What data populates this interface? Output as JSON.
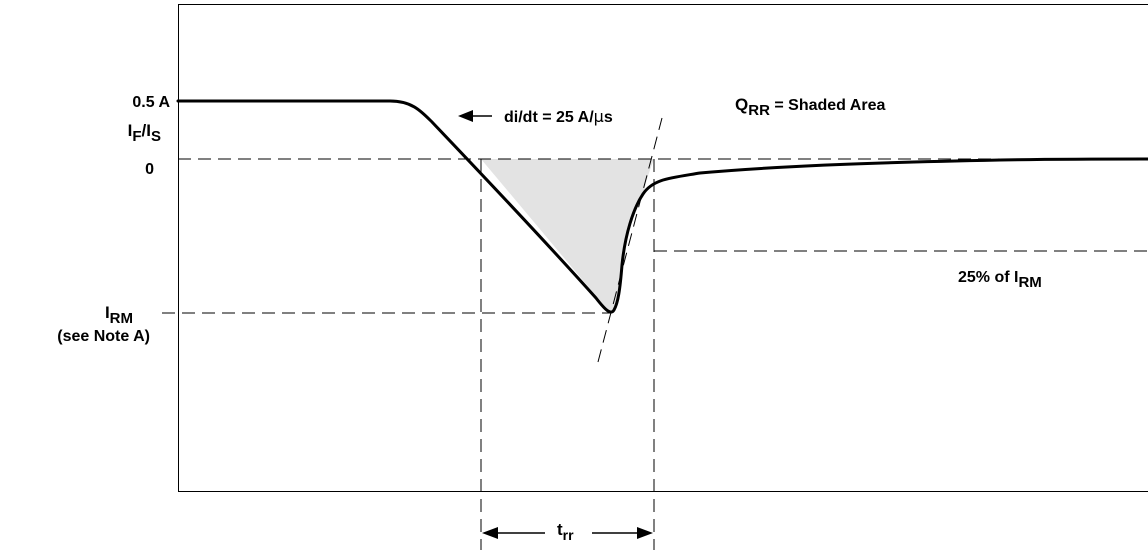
{
  "figure": {
    "y_axis": {
      "level_label": "0.5 A",
      "quantity_main": "I",
      "quantity_sub_1": "F",
      "quantity_sep": "/I",
      "quantity_sub_2": "S",
      "zero_label": "0",
      "irm_main": "I",
      "irm_sub": "RM",
      "note": "(see Note A)"
    },
    "slope_label": "di/dt = 25 A/",
    "slope_mu": "µ",
    "slope_unit": "s",
    "qrr_main": "Q",
    "qrr_sub": "RR",
    "qrr_text": " = Shaded Area",
    "pct_text": "25% of I",
    "pct_sub": "RM",
    "trr_main": "t",
    "trr_sub": "rr",
    "colors": {
      "shaded_area": "#e3e3e3",
      "line": "#000000"
    }
  }
}
